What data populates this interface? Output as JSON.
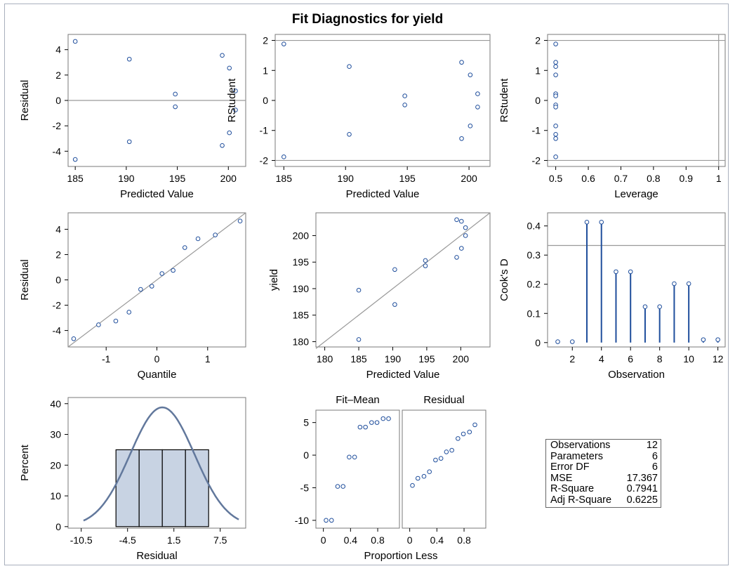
{
  "page": {
    "title": "Fit Diagnostics for yield"
  },
  "colors": {
    "marker": "#1f4e9c",
    "needle": "#1f4e9c",
    "ref_line": "#9a9a9a",
    "hist_fill": "#c8d3e3",
    "hist_edge": "#000000",
    "density": "#62789c",
    "panel_border": "#7a7a7a"
  },
  "chart_data": [
    {
      "id": "residual-vs-predicted",
      "type": "scatter",
      "xlabel": "Predicted Value",
      "ylabel": "Residual",
      "xlim": [
        184.3,
        201.7
      ],
      "ylim": [
        -5.2,
        5.2
      ],
      "xticks": [
        185,
        190,
        195,
        200
      ],
      "yticks": [
        -4,
        -2,
        0,
        2,
        4
      ],
      "hlines": [
        0
      ],
      "x": [
        185.0,
        185.0,
        190.3,
        190.3,
        194.8,
        194.8,
        199.4,
        199.4,
        200.1,
        200.1,
        200.7,
        200.7
      ],
      "y": [
        4.65,
        -4.65,
        3.25,
        -3.25,
        0.5,
        -0.5,
        3.55,
        -3.55,
        2.55,
        -2.55,
        0.75,
        -0.75
      ]
    },
    {
      "id": "rstudent-vs-predicted",
      "type": "scatter",
      "xlabel": "Predicted Value",
      "ylabel": "RStudent",
      "xlim": [
        184.3,
        201.7
      ],
      "ylim": [
        -2.2,
        2.2
      ],
      "xticks": [
        185,
        190,
        195,
        200
      ],
      "yticks": [
        -2,
        -1,
        0,
        1,
        2
      ],
      "hlines": [
        -2,
        2
      ],
      "x": [
        185.0,
        185.0,
        190.3,
        190.3,
        194.8,
        194.8,
        199.4,
        199.4,
        200.1,
        200.1,
        200.7,
        200.7
      ],
      "y": [
        1.88,
        -1.88,
        1.13,
        -1.13,
        0.15,
        -0.15,
        1.27,
        -1.27,
        0.85,
        -0.85,
        0.22,
        -0.22
      ]
    },
    {
      "id": "rstudent-vs-leverage",
      "type": "scatter",
      "xlabel": "Leverage",
      "ylabel": "RStudent",
      "xlim": [
        0.475,
        1.02
      ],
      "ylim": [
        -2.2,
        2.2
      ],
      "xticks": [
        0.5,
        0.6,
        0.7,
        0.8,
        0.9,
        1.0
      ],
      "yticks": [
        -2,
        -1,
        0,
        1,
        2
      ],
      "hlines": [
        -2,
        2
      ],
      "vlines": [
        1.0
      ],
      "x": [
        0.5,
        0.5,
        0.5,
        0.5,
        0.5,
        0.5,
        0.5,
        0.5,
        0.5,
        0.5,
        0.5,
        0.5
      ],
      "y": [
        1.88,
        1.27,
        1.13,
        0.85,
        0.22,
        0.15,
        -0.15,
        -0.22,
        -0.85,
        -1.13,
        -1.27,
        -1.88
      ]
    },
    {
      "id": "residual-qq",
      "type": "scatter",
      "xlabel": "Quantile",
      "ylabel": "Residual",
      "xlim": [
        -1.75,
        1.75
      ],
      "ylim": [
        -5.3,
        5.3
      ],
      "xticks": [
        -1,
        0,
        1
      ],
      "yticks": [
        -4,
        -2,
        0,
        2,
        4
      ],
      "ref_line": [
        [
          -1.75,
          -5.3
        ],
        [
          1.75,
          5.3
        ]
      ],
      "x": [
        -1.64,
        -1.15,
        -0.81,
        -0.55,
        -0.32,
        -0.1,
        0.1,
        0.32,
        0.55,
        0.81,
        1.15,
        1.64
      ],
      "y": [
        -4.65,
        -3.55,
        -3.25,
        -2.55,
        -0.75,
        -0.5,
        0.5,
        0.75,
        2.55,
        3.25,
        3.55,
        4.65
      ]
    },
    {
      "id": "yield-vs-predicted",
      "type": "scatter",
      "xlabel": "Predicted Value",
      "ylabel": "yield",
      "xlim": [
        178.7,
        204.3
      ],
      "ylim": [
        179.0,
        204.3
      ],
      "xticks": [
        180,
        185,
        190,
        195,
        200
      ],
      "yticks": [
        180,
        185,
        190,
        195,
        200
      ],
      "ref_line": [
        [
          178.7,
          178.7
        ],
        [
          204.3,
          204.3
        ]
      ],
      "x": [
        185.0,
        185.0,
        190.3,
        190.3,
        194.8,
        194.8,
        199.4,
        199.4,
        200.1,
        200.1,
        200.7,
        200.7
      ],
      "y": [
        189.7,
        180.4,
        193.6,
        187.0,
        195.3,
        194.3,
        203.0,
        195.9,
        202.7,
        197.6,
        201.5,
        200.0
      ]
    },
    {
      "id": "cooks-d",
      "type": "needle",
      "xlabel": "Observation",
      "ylabel": "Cook's D",
      "xlim": [
        0.3,
        12.5
      ],
      "ylim": [
        -0.015,
        0.445
      ],
      "xticks": [
        2,
        4,
        6,
        8,
        10,
        12
      ],
      "yticks": [
        0.0,
        0.1,
        0.2,
        0.3,
        0.4
      ],
      "hlines": [
        0.333
      ],
      "x": [
        1,
        2,
        3,
        4,
        5,
        6,
        7,
        8,
        9,
        10,
        11,
        12
      ],
      "y": [
        0.003,
        0.003,
        0.413,
        0.413,
        0.243,
        0.243,
        0.123,
        0.123,
        0.202,
        0.202,
        0.01,
        0.01
      ]
    },
    {
      "id": "residual-histogram",
      "type": "bar",
      "xlabel": "Residual",
      "ylabel": "Percent",
      "xlim": [
        -12.2,
        10.8
      ],
      "ylim": [
        -0.5,
        42
      ],
      "xtick_values": [
        -10.5,
        -4.5,
        1.5,
        7.5
      ],
      "xtick_labels": [
        "-10.5",
        "-4.5",
        "1.5",
        "7.5"
      ],
      "yticks": [
        0,
        10,
        20,
        30,
        40
      ],
      "bins": [
        [
          -6.0,
          -3.0
        ],
        [
          -3.0,
          0.0
        ],
        [
          0.0,
          3.0
        ],
        [
          3.0,
          6.0
        ]
      ],
      "values": [
        25,
        25,
        25,
        25
      ],
      "density": {
        "mean": 0.0,
        "sd": 4.17,
        "peak": 38.8,
        "range": [
          -10.2,
          9.9
        ]
      }
    },
    {
      "id": "fit-mean-spread",
      "type": "scatter",
      "title": "Fit–Mean",
      "xlabel": "",
      "ylabel": "",
      "xlim": [
        -0.11,
        1.12
      ],
      "ylim": [
        -11.2,
        6.9
      ],
      "xticks": [
        0.0,
        0.4,
        0.8
      ],
      "yticks": [
        -10,
        -5,
        0,
        5
      ],
      "x": [
        0.04,
        0.12,
        0.21,
        0.29,
        0.38,
        0.46,
        0.54,
        0.62,
        0.71,
        0.79,
        0.88,
        0.96
      ],
      "y": [
        -10.0,
        -10.0,
        -4.8,
        -4.8,
        -0.3,
        -0.3,
        4.3,
        4.3,
        5.0,
        5.0,
        5.6,
        5.6
      ]
    },
    {
      "id": "residual-spread",
      "type": "scatter",
      "title": "Residual",
      "xlabel": "",
      "ylabel": "",
      "xlim": [
        -0.11,
        1.12
      ],
      "ylim": [
        -11.2,
        6.9
      ],
      "xticks": [
        0.0,
        0.4,
        0.8
      ],
      "yticks": [],
      "x": [
        0.04,
        0.12,
        0.21,
        0.29,
        0.38,
        0.46,
        0.54,
        0.62,
        0.71,
        0.79,
        0.88,
        0.96
      ],
      "y": [
        -4.65,
        -3.55,
        -3.25,
        -2.55,
        -0.75,
        -0.5,
        0.5,
        0.75,
        2.55,
        3.25,
        3.55,
        4.65
      ]
    }
  ],
  "spread_xlabel": "Proportion Less",
  "fit_stats": [
    {
      "label": "Observations",
      "value": "12"
    },
    {
      "label": "Parameters",
      "value": "6"
    },
    {
      "label": "Error DF",
      "value": "6"
    },
    {
      "label": "MSE",
      "value": "17.367"
    },
    {
      "label": "R-Square",
      "value": "0.7941"
    },
    {
      "label": "Adj R-Square",
      "value": "0.6225"
    }
  ]
}
